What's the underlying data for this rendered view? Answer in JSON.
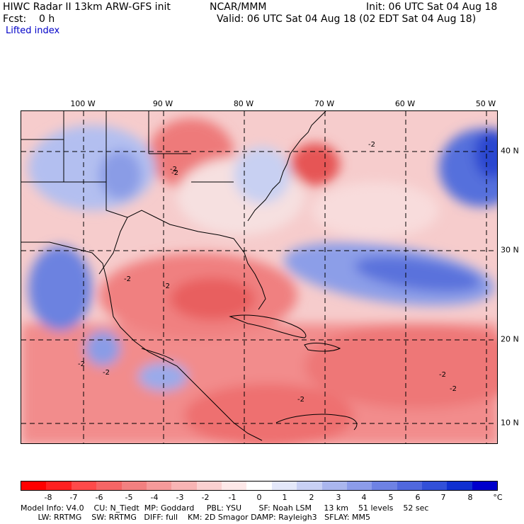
{
  "header": {
    "title_left": "HIWC Radar II 13km ARW-GFS init",
    "org": "NCAR/MMM",
    "init": "Init: 06 UTC Sat 04 Aug 18",
    "fcst": "Fcst:    0 h",
    "valid": "Valid: 06 UTC Sat 04 Aug 18 (02 EDT Sat 04 Aug 18)",
    "field": "Lifted index"
  },
  "map": {
    "lon_labels": [
      "100 W",
      "90 W",
      "80 W",
      "70 W",
      "60 W",
      "50 W"
    ],
    "lat_labels": [
      "40 N",
      "30 N",
      "20 N",
      "10 N"
    ],
    "contour_label": "-2",
    "colors": {
      "strong_neg": "#e85a5a",
      "mid_neg": "#f29a9a",
      "weak_neg": "#f7d0d0",
      "neutral": "#fff0f0",
      "weak_pos": "#d6dcf5",
      "mid_pos": "#9fb0ea",
      "strong_pos": "#4a62d8",
      "deep_pos": "#1f3ad0"
    }
  },
  "colorbar": {
    "labels": [
      "-8",
      "-7",
      "-6",
      "-5",
      "-4",
      "-3",
      "-2",
      "-1",
      "0",
      "1",
      "2",
      "3",
      "4",
      "5",
      "6",
      "7",
      "8"
    ],
    "unit": "°C",
    "colors": [
      "#ff0000",
      "#ff2020",
      "#ff4a4a",
      "#f56565",
      "#f28080",
      "#f59a9a",
      "#f8b4b4",
      "#fad0d0",
      "#fde8e8",
      "#ffffff",
      "#e4e8fa",
      "#c8d0f4",
      "#aab6ee",
      "#8c9cea",
      "#6e82e4",
      "#5068de",
      "#3250d8",
      "#1030d0",
      "#0000cc"
    ]
  },
  "footer": {
    "line1": "Model Info: V4.0    CU: N_Tiedt  MP: Goddard     PBL: YSU       SF: Noah LSM     13 km    51 levels    52 sec",
    "line2": "       LW: RRTMG    SW: RRTMG   DIFF: full    KM: 2D Smagor DAMP: Rayleigh3   SFLAY: MM5"
  }
}
